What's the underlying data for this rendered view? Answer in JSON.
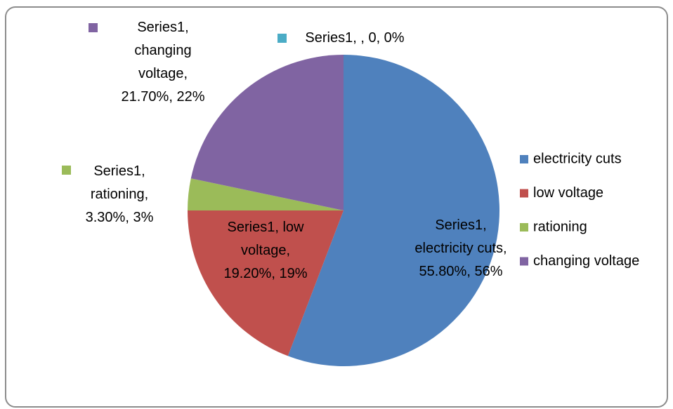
{
  "chart_data": {
    "type": "pie",
    "categories": [
      "electricity cuts",
      "low voltage",
      "rationing",
      "changing voltage",
      null
    ],
    "values": [
      55.8,
      19.2,
      3.3,
      21.7,
      0
    ],
    "value_labels": [
      "Series1, electricity cuts, 55.80%, 56%",
      "Series1, low voltage, 19.20%, 19%",
      "Series1, rationing, 3.30%, 3%",
      "Series1, changing voltage, 21.70%, 22%",
      "Series1, , 0, 0%"
    ],
    "colors": [
      "#4f81bd",
      "#c0504d",
      "#9bbb59",
      "#8064a2",
      "#4bacc6"
    ],
    "legend": "right"
  }
}
